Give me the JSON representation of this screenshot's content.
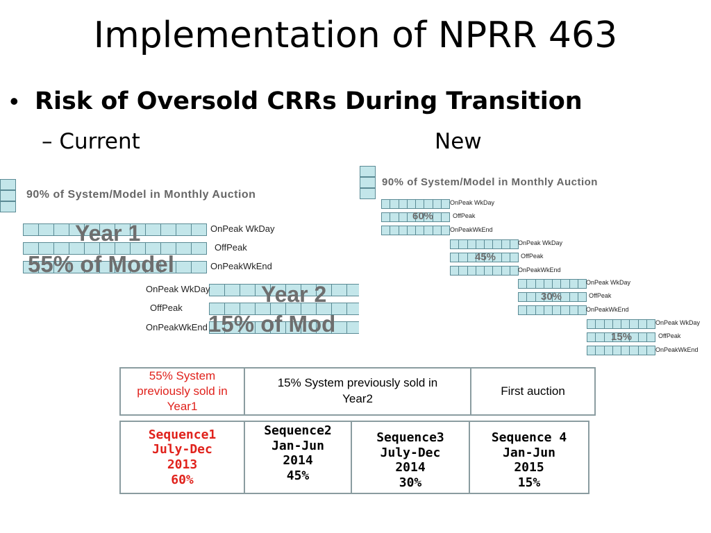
{
  "title": "Implementation of NPRR 463",
  "bullet": "Risk of Oversold CRRs During Transition",
  "current_label": "– Current",
  "new_label": "New",
  "current": {
    "heading": "90% of System/Model in Monthly Auction",
    "year1": {
      "title": "Year 1",
      "subtitle": "55% of Model",
      "labels": [
        "OnPeak WkDay",
        "OffPeak",
        "OnPeakWkEnd"
      ]
    },
    "year2": {
      "title": "Year 2",
      "subtitle": "15% of Mod",
      "labels": [
        "OnPeak WkDay",
        "OffPeak",
        "OnPeakWkEnd"
      ]
    }
  },
  "new": {
    "heading": "90% of System/Model in Monthly Auction",
    "groups": [
      {
        "pct": "60%",
        "labels": [
          "OnPeak WkDay",
          "OffPeak",
          "OnPeakWkEnd"
        ]
      },
      {
        "pct": "45%",
        "labels": [
          "OnPeak WkDay",
          "OffPeak",
          "OnPeakWkEnd"
        ]
      },
      {
        "pct": "30%",
        "labels": [
          "OnPeak WkDay",
          "OffPeak",
          "OnPeakWkEnd"
        ]
      },
      {
        "pct": "15%",
        "labels": [
          "OnPeak WkDay",
          "OffPeak",
          "OnPeakWkEnd"
        ]
      }
    ]
  },
  "table_top": [
    "55% System previously sold in Year1",
    "15% System previously sold in Year2",
    "First auction"
  ],
  "sequences": [
    {
      "name": "Sequence1",
      "period": "July-Dec",
      "year": "2013",
      "pct": "60%"
    },
    {
      "name": "Sequence2",
      "period": "Jan-Jun",
      "year": "2014",
      "pct": "45%"
    },
    {
      "name": "Sequence3",
      "period": "July-Dec",
      "year": "2014",
      "pct": "30%"
    },
    {
      "name": "Sequence 4",
      "period": "Jan-Jun",
      "year": "2015",
      "pct": "15%"
    }
  ],
  "colors": {
    "highlight": "#e0221c",
    "bar_fill": "#c3e6ea",
    "bar_border": "#5a8a94"
  }
}
